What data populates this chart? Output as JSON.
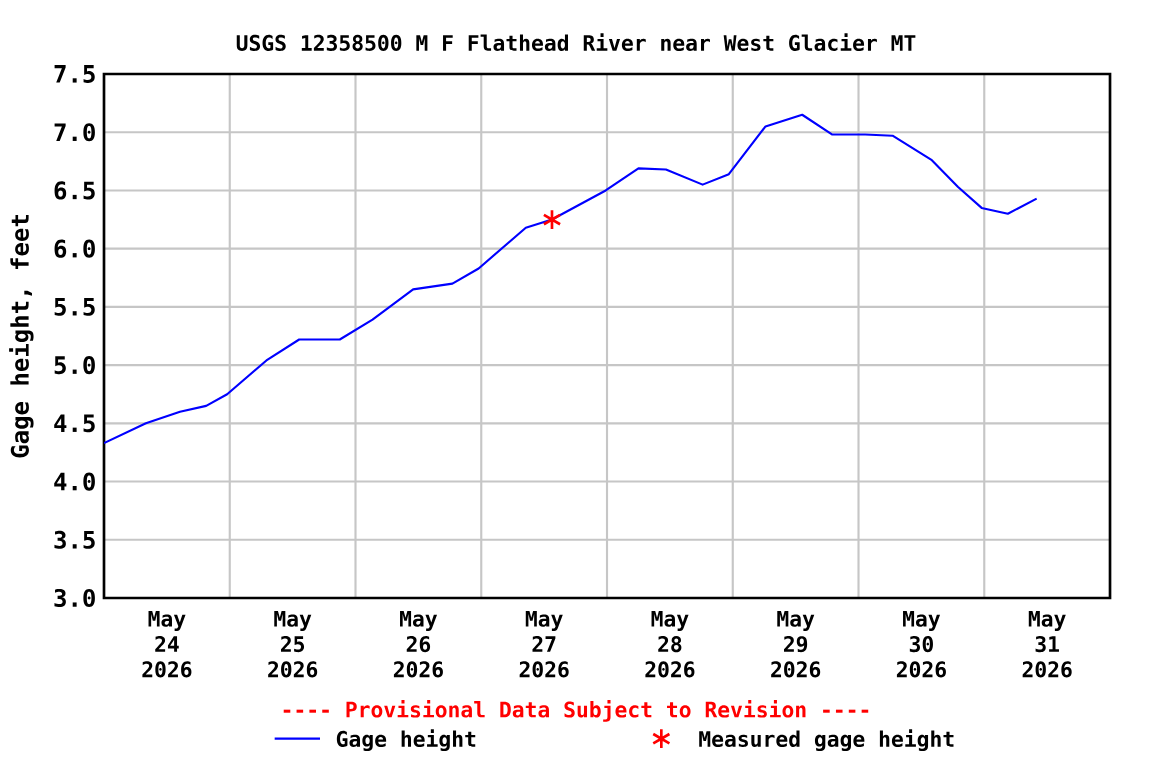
{
  "chart_data": {
    "type": "line",
    "title": "USGS 12358500 M F Flathead River near West Glacier MT",
    "ylabel": "Gage height, feet",
    "annotations": [
      "---- Provisional Data Subject to Revision ----"
    ],
    "xlim": [
      "2026-05-24T00:00",
      "2026-06-01T00:00"
    ],
    "xticks": [
      {
        "value": "2026-05-24T12:00",
        "label": "May 24 2026"
      },
      {
        "value": "2026-05-25T00:00",
        "label": null
      },
      {
        "value": "2026-05-25T12:00",
        "label": "May 25 2026"
      },
      {
        "value": "2026-05-26T00:00",
        "label": null
      },
      {
        "value": "2026-05-26T12:00",
        "label": "May 26 2026"
      },
      {
        "value": "2026-05-27T00:00",
        "label": null
      },
      {
        "value": "2026-05-27T12:00",
        "label": "May 27 2026"
      },
      {
        "value": "2026-05-28T00:00",
        "label": null
      },
      {
        "value": "2026-05-28T12:00",
        "label": "May 28 2026"
      },
      {
        "value": "2026-05-29T00:00",
        "label": null
      },
      {
        "value": "2026-05-29T12:00",
        "label": "May 29 2026"
      },
      {
        "value": "2026-05-30T00:00",
        "label": null
      },
      {
        "value": "2026-05-30T12:00",
        "label": "May 30 2026"
      },
      {
        "value": "2026-05-31T00:00",
        "label": null
      },
      {
        "value": "2026-05-31T12:00",
        "label": "May 31 2026"
      }
    ],
    "ylim": [
      3.0,
      7.5
    ],
    "yticks": [
      {
        "value": 3,
        "label": "3.0"
      },
      {
        "value": 3.5,
        "label": "3.5"
      },
      {
        "value": 4,
        "label": "4.0"
      },
      {
        "value": 4.5,
        "label": "4.5"
      },
      {
        "value": 5,
        "label": "5.0"
      },
      {
        "value": 5.5,
        "label": "5.5"
      },
      {
        "value": 6,
        "label": "6.0"
      },
      {
        "value": 6.5,
        "label": "6.5"
      },
      {
        "value": 7,
        "label": "7.0"
      },
      {
        "value": 7.5,
        "label": "7.5"
      }
    ],
    "grid": true,
    "legend": "bottom",
    "series": [
      {
        "name": "Gage height",
        "color": "#0000ff",
        "marker": "none",
        "line_style": "solid",
        "x": [
          "2026-05-24T00:00",
          "2026-05-24T08:00",
          "2026-05-24T14:30",
          "2026-05-24T19:30",
          "2026-05-24T23:30",
          "2026-05-25T07:00",
          "2026-05-25T13:15",
          "2026-05-25T21:00",
          "2026-05-26T03:15",
          "2026-05-26T11:00",
          "2026-05-26T18:30",
          "2026-05-26T23:30",
          "2026-05-27T08:30",
          "2026-05-27T13:30",
          "2026-05-27T23:45",
          "2026-05-28T06:00",
          "2026-05-28T11:15",
          "2026-05-28T18:15",
          "2026-05-28T23:15",
          "2026-05-29T06:15",
          "2026-05-29T13:15",
          "2026-05-29T19:00",
          "2026-05-30T01:15",
          "2026-05-30T06:30",
          "2026-05-30T14:00",
          "2026-05-30T19:00",
          "2026-05-30T23:30",
          "2026-05-31T04:30",
          "2026-05-31T10:00"
        ],
        "values": [
          4.33,
          4.5,
          4.6,
          4.65,
          4.75,
          5.04,
          5.22,
          5.22,
          5.39,
          5.65,
          5.7,
          5.83,
          6.18,
          6.25,
          6.5,
          6.69,
          6.68,
          6.55,
          6.64,
          7.05,
          7.15,
          6.98,
          6.98,
          6.97,
          6.76,
          6.53,
          6.35,
          6.3,
          6.43
        ]
      },
      {
        "name": "Measured gage height",
        "type": "scatter",
        "color": "#ff0000",
        "marker": "cross",
        "x": [
          "2026-05-27T13:30"
        ],
        "values": [
          6.25
        ]
      }
    ]
  }
}
